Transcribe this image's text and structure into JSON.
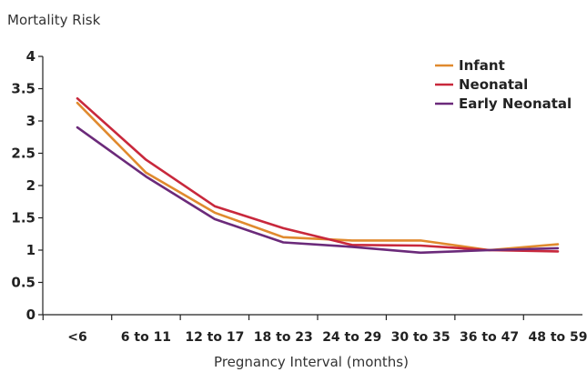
{
  "chart_data": {
    "type": "line",
    "title": "",
    "ylabel": "Mortality Risk",
    "xlabel": "Pregnancy Interval (months)",
    "categories": [
      "<6",
      "6 to 11",
      "12 to 17",
      "18 to 23",
      "24 to 29",
      "30 to 35",
      "36 to 47",
      "48 to 59"
    ],
    "ylim": [
      0,
      4
    ],
    "yticks": [
      "0",
      "0.5",
      "1",
      "1.5",
      "2",
      "2.5",
      "3",
      "3.5",
      "4"
    ],
    "grid": false,
    "legend_position": "top-right",
    "series": [
      {
        "name": "Infant",
        "color": "#E08A2E",
        "values": [
          3.28,
          2.2,
          1.58,
          1.2,
          1.15,
          1.15,
          1.0,
          1.09
        ]
      },
      {
        "name": "Neonatal",
        "color": "#C8283C",
        "values": [
          3.35,
          2.4,
          1.68,
          1.34,
          1.08,
          1.07,
          1.0,
          0.98
        ]
      },
      {
        "name": "Early Neonatal",
        "color": "#6B2A7A",
        "values": [
          2.9,
          2.14,
          1.48,
          1.12,
          1.05,
          0.96,
          1.0,
          1.03
        ]
      }
    ]
  }
}
